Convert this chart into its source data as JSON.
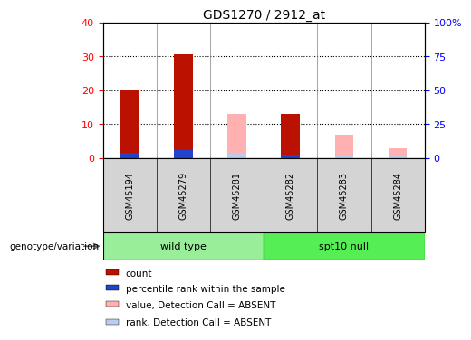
{
  "title": "GDS1270 / 2912_at",
  "samples": [
    "GSM45194",
    "GSM45279",
    "GSM45281",
    "GSM45282",
    "GSM45283",
    "GSM45284"
  ],
  "count_values": [
    20,
    30.5,
    0,
    13,
    0,
    0
  ],
  "percentile_values": [
    4,
    6,
    0,
    2.5,
    0,
    0
  ],
  "absent_value_values": [
    0,
    0,
    13,
    0,
    7,
    3
  ],
  "absent_rank_values": [
    0,
    0,
    3,
    0,
    2,
    1.5
  ],
  "left_ylim": [
    0,
    40
  ],
  "right_ylim": [
    0,
    100
  ],
  "left_yticks": [
    0,
    10,
    20,
    30,
    40
  ],
  "right_yticks": [
    0,
    25,
    50,
    75,
    100
  ],
  "right_yticklabels": [
    "0",
    "25",
    "50",
    "75",
    "100%"
  ],
  "color_count": "#bb1100",
  "color_percentile": "#2244cc",
  "color_absent_value": "#ffb0b0",
  "color_absent_rank": "#bbccee",
  "color_sample_bg": "#d4d4d4",
  "color_group1": "#99ee99",
  "color_group2": "#55ee55",
  "bar_width": 0.35,
  "genotype_label": "genotype/variation",
  "group1_label": "wild type",
  "group2_label": "spt10 null",
  "legend_items": [
    {
      "label": "count",
      "color": "#bb1100"
    },
    {
      "label": "percentile rank within the sample",
      "color": "#2244cc"
    },
    {
      "label": "value, Detection Call = ABSENT",
      "color": "#ffb0b0"
    },
    {
      "label": "rank, Detection Call = ABSENT",
      "color": "#bbccee"
    }
  ]
}
